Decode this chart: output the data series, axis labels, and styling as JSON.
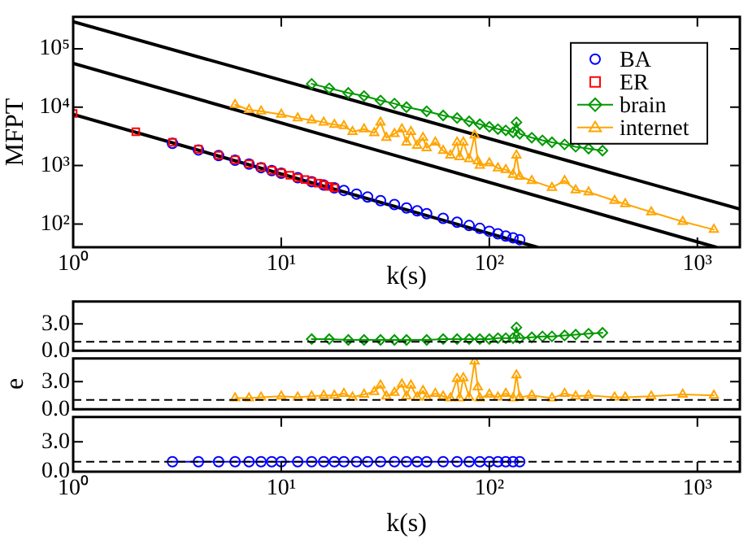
{
  "chart_data": [
    {
      "type": "scatter",
      "xlabel": "k(s)",
      "ylabel": "MFPT",
      "log": "xy",
      "xlim": [
        1,
        1600
      ],
      "ylim": [
        40,
        350000
      ],
      "xticks": [
        {
          "value": 1,
          "label": "10⁰"
        },
        {
          "value": 10,
          "label": "10¹"
        },
        {
          "value": 100,
          "label": "10²"
        },
        {
          "value": 1000,
          "label": "10³"
        }
      ],
      "yticks": [
        {
          "value": 100,
          "label": "10²"
        },
        {
          "value": 1000,
          "label": "10³"
        },
        {
          "value": 10000,
          "label": "10⁴"
        },
        {
          "value": 100000,
          "label": "10⁵"
        }
      ],
      "grid": false,
      "legend": "top right",
      "series": [
        {
          "type": "line",
          "color": "#000000",
          "marker": "none",
          "x": [
            1,
            1600
          ],
          "values": [
            290000,
            180
          ]
        },
        {
          "type": "line",
          "color": "#000000",
          "marker": "none",
          "x": [
            1,
            1230
          ],
          "values": [
            56000,
            40
          ]
        },
        {
          "type": "line",
          "color": "#000000",
          "marker": "none",
          "x": [
            1,
            170
          ],
          "values": [
            7500,
            40
          ]
        },
        {
          "name": "BA",
          "color": "#0000ff",
          "marker": "circle",
          "x": [
            3,
            4,
            5,
            6,
            7,
            8,
            9,
            10,
            12,
            14,
            16,
            18,
            20,
            23,
            26,
            30,
            35,
            40,
            45,
            50,
            60,
            70,
            80,
            90,
            100,
            110,
            120,
            130,
            140
          ],
          "values": [
            2400,
            1850,
            1480,
            1230,
            1060,
            920,
            820,
            740,
            620,
            530,
            465,
            415,
            375,
            325,
            290,
            250,
            215,
            188,
            168,
            150,
            125,
            107,
            94,
            84,
            75,
            68,
            62,
            58,
            54
          ]
        },
        {
          "name": "ER",
          "color": "#ff0000",
          "marker": "square",
          "x": [
            1,
            2,
            3,
            4,
            5,
            6,
            7,
            8,
            9,
            10,
            11,
            12,
            13,
            14,
            15,
            16,
            17,
            18
          ],
          "values": [
            7800,
            3800,
            2500,
            1900,
            1500,
            1250,
            1070,
            940,
            830,
            750,
            680,
            620,
            575,
            535,
            500,
            470,
            440,
            415
          ]
        },
        {
          "name": "brain",
          "type": "line",
          "color": "#009900",
          "marker": "diamond",
          "x": [
            14,
            17,
            21,
            25,
            30,
            35,
            40,
            50,
            60,
            70,
            80,
            90,
            100,
            110,
            120,
            130,
            135,
            140,
            160,
            180,
            200,
            230,
            260,
            300,
            350
          ],
          "values": [
            25000,
            21000,
            17500,
            15500,
            13000,
            11500,
            10000,
            8500,
            7200,
            6500,
            5700,
            5100,
            4600,
            4200,
            4000,
            3700,
            5500,
            3500,
            3000,
            2700,
            2500,
            2300,
            2100,
            1950,
            1800
          ]
        },
        {
          "name": "internet",
          "type": "line",
          "color": "#ffa500",
          "marker": "triangle",
          "x": [
            6,
            7,
            8,
            10,
            12,
            14,
            16,
            18,
            20,
            22,
            25,
            28,
            30,
            32,
            35,
            38,
            40,
            42,
            45,
            48,
            50,
            55,
            60,
            65,
            70,
            72,
            75,
            80,
            85,
            88,
            90,
            100,
            110,
            120,
            130,
            135,
            140,
            160,
            200,
            230,
            260,
            300,
            400,
            450,
            600,
            850,
            1200
          ],
          "values": [
            11000,
            9000,
            8500,
            7500,
            6500,
            6000,
            5500,
            5000,
            4800,
            3800,
            4200,
            3600,
            5500,
            3000,
            3500,
            4200,
            2500,
            3800,
            2200,
            3000,
            2000,
            2500,
            1800,
            1500,
            2500,
            1400,
            2500,
            1300,
            3300,
            1200,
            1000,
            1100,
            900,
            850,
            700,
            1500,
            650,
            550,
            420,
            550,
            380,
            350,
            250,
            220,
            160,
            110,
            80
          ]
        }
      ]
    },
    {
      "type": "line",
      "log": "x",
      "xlim": [
        1,
        1600
      ],
      "ylim": [
        0,
        5.5
      ],
      "tick_labels": "y",
      "grid": false,
      "yticks": [
        {
          "value": 0,
          "label": "0.0"
        },
        {
          "value": 3,
          "label": "3.0"
        }
      ],
      "ref_lines": [
        {
          "axis": "y",
          "value": 1,
          "color": "#000000",
          "line_style": "dashed"
        }
      ],
      "series": [
        {
          "color": "#009900",
          "marker": "diamond",
          "x": [
            14,
            17,
            21,
            25,
            30,
            35,
            40,
            50,
            60,
            70,
            80,
            90,
            100,
            110,
            120,
            130,
            135,
            140,
            160,
            180,
            200,
            230,
            260,
            300,
            350
          ],
          "values": [
            1.3,
            1.3,
            1.2,
            1.2,
            1.2,
            1.2,
            1.2,
            1.2,
            1.3,
            1.3,
            1.3,
            1.3,
            1.3,
            1.4,
            1.4,
            1.4,
            2.6,
            1.4,
            1.5,
            1.6,
            1.6,
            1.7,
            1.8,
            1.9,
            2.0
          ]
        }
      ]
    },
    {
      "type": "line",
      "log": "x",
      "xlim": [
        1,
        1600
      ],
      "ylim": [
        0,
        5.5
      ],
      "tick_labels": "y",
      "grid": false,
      "ylabel": "e",
      "yticks": [
        {
          "value": 0,
          "label": "0.0"
        },
        {
          "value": 3,
          "label": "3.0"
        }
      ],
      "ref_lines": [
        {
          "axis": "y",
          "value": 1,
          "color": "#000000",
          "line_style": "dashed"
        }
      ],
      "series": [
        {
          "color": "#ffa500",
          "marker": "triangle",
          "x": [
            6,
            7,
            8,
            10,
            12,
            14,
            16,
            18,
            20,
            22,
            25,
            28,
            30,
            32,
            35,
            38,
            40,
            42,
            45,
            48,
            50,
            55,
            60,
            65,
            70,
            72,
            75,
            80,
            85,
            88,
            90,
            100,
            110,
            120,
            130,
            135,
            140,
            160,
            200,
            230,
            260,
            300,
            400,
            450,
            600,
            850,
            1200
          ],
          "values": [
            1.2,
            1.2,
            1.3,
            1.4,
            1.3,
            1.4,
            1.5,
            1.5,
            1.7,
            1.3,
            1.6,
            1.9,
            2.6,
            1.4,
            1.8,
            2.7,
            1.4,
            2.6,
            1.3,
            2.0,
            1.3,
            1.7,
            1.4,
            1.2,
            3.3,
            1.2,
            3.4,
            1.3,
            5.2,
            2.4,
            1.2,
            1.6,
            1.3,
            1.7,
            1.2,
            3.7,
            1.3,
            1.5,
            1.2,
            1.7,
            1.4,
            1.5,
            1.3,
            1.3,
            1.4,
            1.6,
            1.5
          ]
        }
      ]
    },
    {
      "type": "line",
      "log": "x",
      "xlim": [
        1,
        1600
      ],
      "ylim": [
        0,
        5.5
      ],
      "grid": false,
      "xlabel": "k(s)",
      "xticks": [
        {
          "value": 1,
          "label": "10⁰"
        },
        {
          "value": 10,
          "label": "10¹"
        },
        {
          "value": 100,
          "label": "10²"
        },
        {
          "value": 1000,
          "label": "10³"
        }
      ],
      "yticks": [
        {
          "value": 0,
          "label": "0.0"
        },
        {
          "value": 3,
          "label": "3.0"
        }
      ],
      "ref_lines": [
        {
          "axis": "y",
          "value": 1,
          "color": "#000000",
          "line_style": "dashed"
        }
      ],
      "series": [
        {
          "color": "#0000ff",
          "marker": "circle",
          "x": [
            3,
            4,
            5,
            6,
            7,
            8,
            9,
            10,
            12,
            14,
            16,
            18,
            20,
            23,
            26,
            30,
            35,
            40,
            45,
            50,
            60,
            70,
            80,
            90,
            100,
            110,
            120,
            130,
            140
          ],
          "values": [
            1,
            1,
            1,
            1,
            1,
            1,
            1,
            1,
            1,
            1,
            1,
            1,
            1,
            1,
            1,
            1,
            1,
            1,
            1,
            1,
            1,
            1,
            1,
            1,
            1,
            1,
            1,
            1,
            1
          ]
        }
      ]
    }
  ]
}
